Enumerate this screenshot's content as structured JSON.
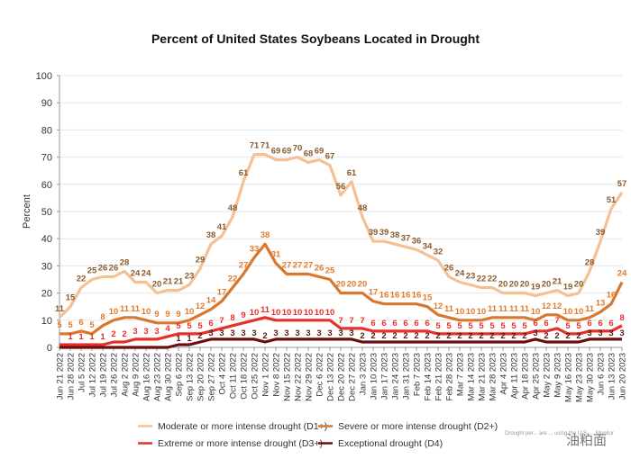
{
  "chart_data": {
    "type": "line",
    "title": "Percent of United States Soybeans Located in Drought",
    "xlabel": "",
    "ylabel": "Percent",
    "ylim": [
      0,
      100
    ],
    "yticks": [
      0,
      10,
      20,
      30,
      40,
      50,
      60,
      70,
      80,
      90,
      100
    ],
    "grid": true,
    "legend_position": "bottom",
    "x": [
      "Jun 21 2022",
      "Jun 28 2022",
      "Jul 5 2022",
      "Jul 12 2022",
      "Jul 19 2022",
      "Jul 26 2022",
      "Aug 2 2022",
      "Aug 9 2022",
      "Aug 16 2022",
      "Aug 23 2022",
      "Aug 30 2022",
      "Sep 6 2022",
      "Sep 13 2022",
      "Sep 20 2022",
      "Sep 27 2022",
      "Oct 4 2022",
      "Oct 11 2022",
      "Oct 18 2022",
      "Oct 25 2022",
      "Nov 1 2022",
      "Nov 8 2022",
      "Nov 15 2022",
      "Nov 22 2022",
      "Nov 29 2022",
      "Dec 6 2022",
      "Dec 13 2022",
      "Dec 20 2022",
      "Dec 27 2022",
      "Jan 3 2023",
      "Jan 10 2023",
      "Jan 17 2023",
      "Jan 24 2023",
      "Jan 31 2023",
      "Feb 7 2023",
      "Feb 14 2023",
      "Feb 21 2023",
      "Feb 28 2023",
      "Mar 7 2023",
      "Mar 14 2023",
      "Mar 21 2023",
      "Mar 28 2023",
      "Apr 4 2023",
      "Apr 11 2023",
      "Apr 18 2023",
      "Apr 25 2023",
      "May 2 2023",
      "May 9 2023",
      "May 16 2023",
      "May 23 2023",
      "May 30 2023",
      "Jun 6 2023",
      "Jun 13 2023",
      "Jun 20 2023"
    ],
    "series": [
      {
        "name": "Moderate or more intense drought (D1+)",
        "color": "#f5c093",
        "label_color": "#8b5a2b",
        "values": [
          11,
          15,
          22,
          25,
          26,
          26,
          28,
          24,
          24,
          20,
          21,
          21,
          23,
          29,
          38,
          41,
          48,
          61,
          71,
          71,
          69,
          69,
          70,
          68,
          69,
          67,
          56,
          61,
          48,
          39,
          39,
          38,
          37,
          36,
          34,
          32,
          26,
          24,
          23,
          22,
          22,
          20,
          20,
          20,
          19,
          20,
          21,
          19,
          20,
          28,
          39,
          51,
          57
        ]
      },
      {
        "name": "Severe or more intense drought (D2+)",
        "color": "#d9782d",
        "label_color": "#e07b2e",
        "values": [
          5,
          5,
          6,
          5,
          8,
          10,
          11,
          11,
          10,
          9,
          9,
          9,
          10,
          12,
          14,
          17,
          22,
          27,
          33,
          38,
          31,
          27,
          27,
          27,
          26,
          25,
          20,
          20,
          20,
          17,
          16,
          16,
          16,
          16,
          15,
          12,
          11,
          10,
          10,
          10,
          11,
          11,
          11,
          11,
          10,
          12,
          12,
          10,
          10,
          11,
          13,
          16,
          24
        ]
      },
      {
        "name": "Extreme or more intense drought (D3+)",
        "color": "#e8302a",
        "label_color": "#e8302a",
        "values": [
          1,
          1,
          1,
          1,
          1,
          2,
          2,
          3,
          3,
          3,
          4,
          5,
          5,
          5,
          6,
          7,
          8,
          9,
          10,
          11,
          10,
          10,
          10,
          10,
          10,
          10,
          7,
          7,
          7,
          6,
          6,
          6,
          6,
          6,
          6,
          5,
          5,
          5,
          5,
          5,
          5,
          5,
          5,
          5,
          6,
          6,
          7,
          5,
          5,
          6,
          6,
          6,
          8
        ]
      },
      {
        "name": "Exceptional drought (D4)",
        "color": "#6b0f0f",
        "label_color": "#5a1a14",
        "values": [
          0,
          0,
          0,
          0,
          0,
          0,
          0,
          0,
          0,
          0,
          0,
          1,
          1,
          2,
          3,
          3,
          3,
          3,
          3,
          2,
          3,
          3,
          3,
          3,
          3,
          3,
          3,
          3,
          2,
          2,
          2,
          2,
          2,
          2,
          2,
          2,
          2,
          2,
          2,
          2,
          2,
          2,
          2,
          2,
          3,
          2,
          2,
          2,
          2,
          3,
          3,
          3,
          3
        ]
      }
    ],
    "footnote": "Drought per... are ... using the U.S. ... Monitor",
    "watermark": "油粕面"
  }
}
